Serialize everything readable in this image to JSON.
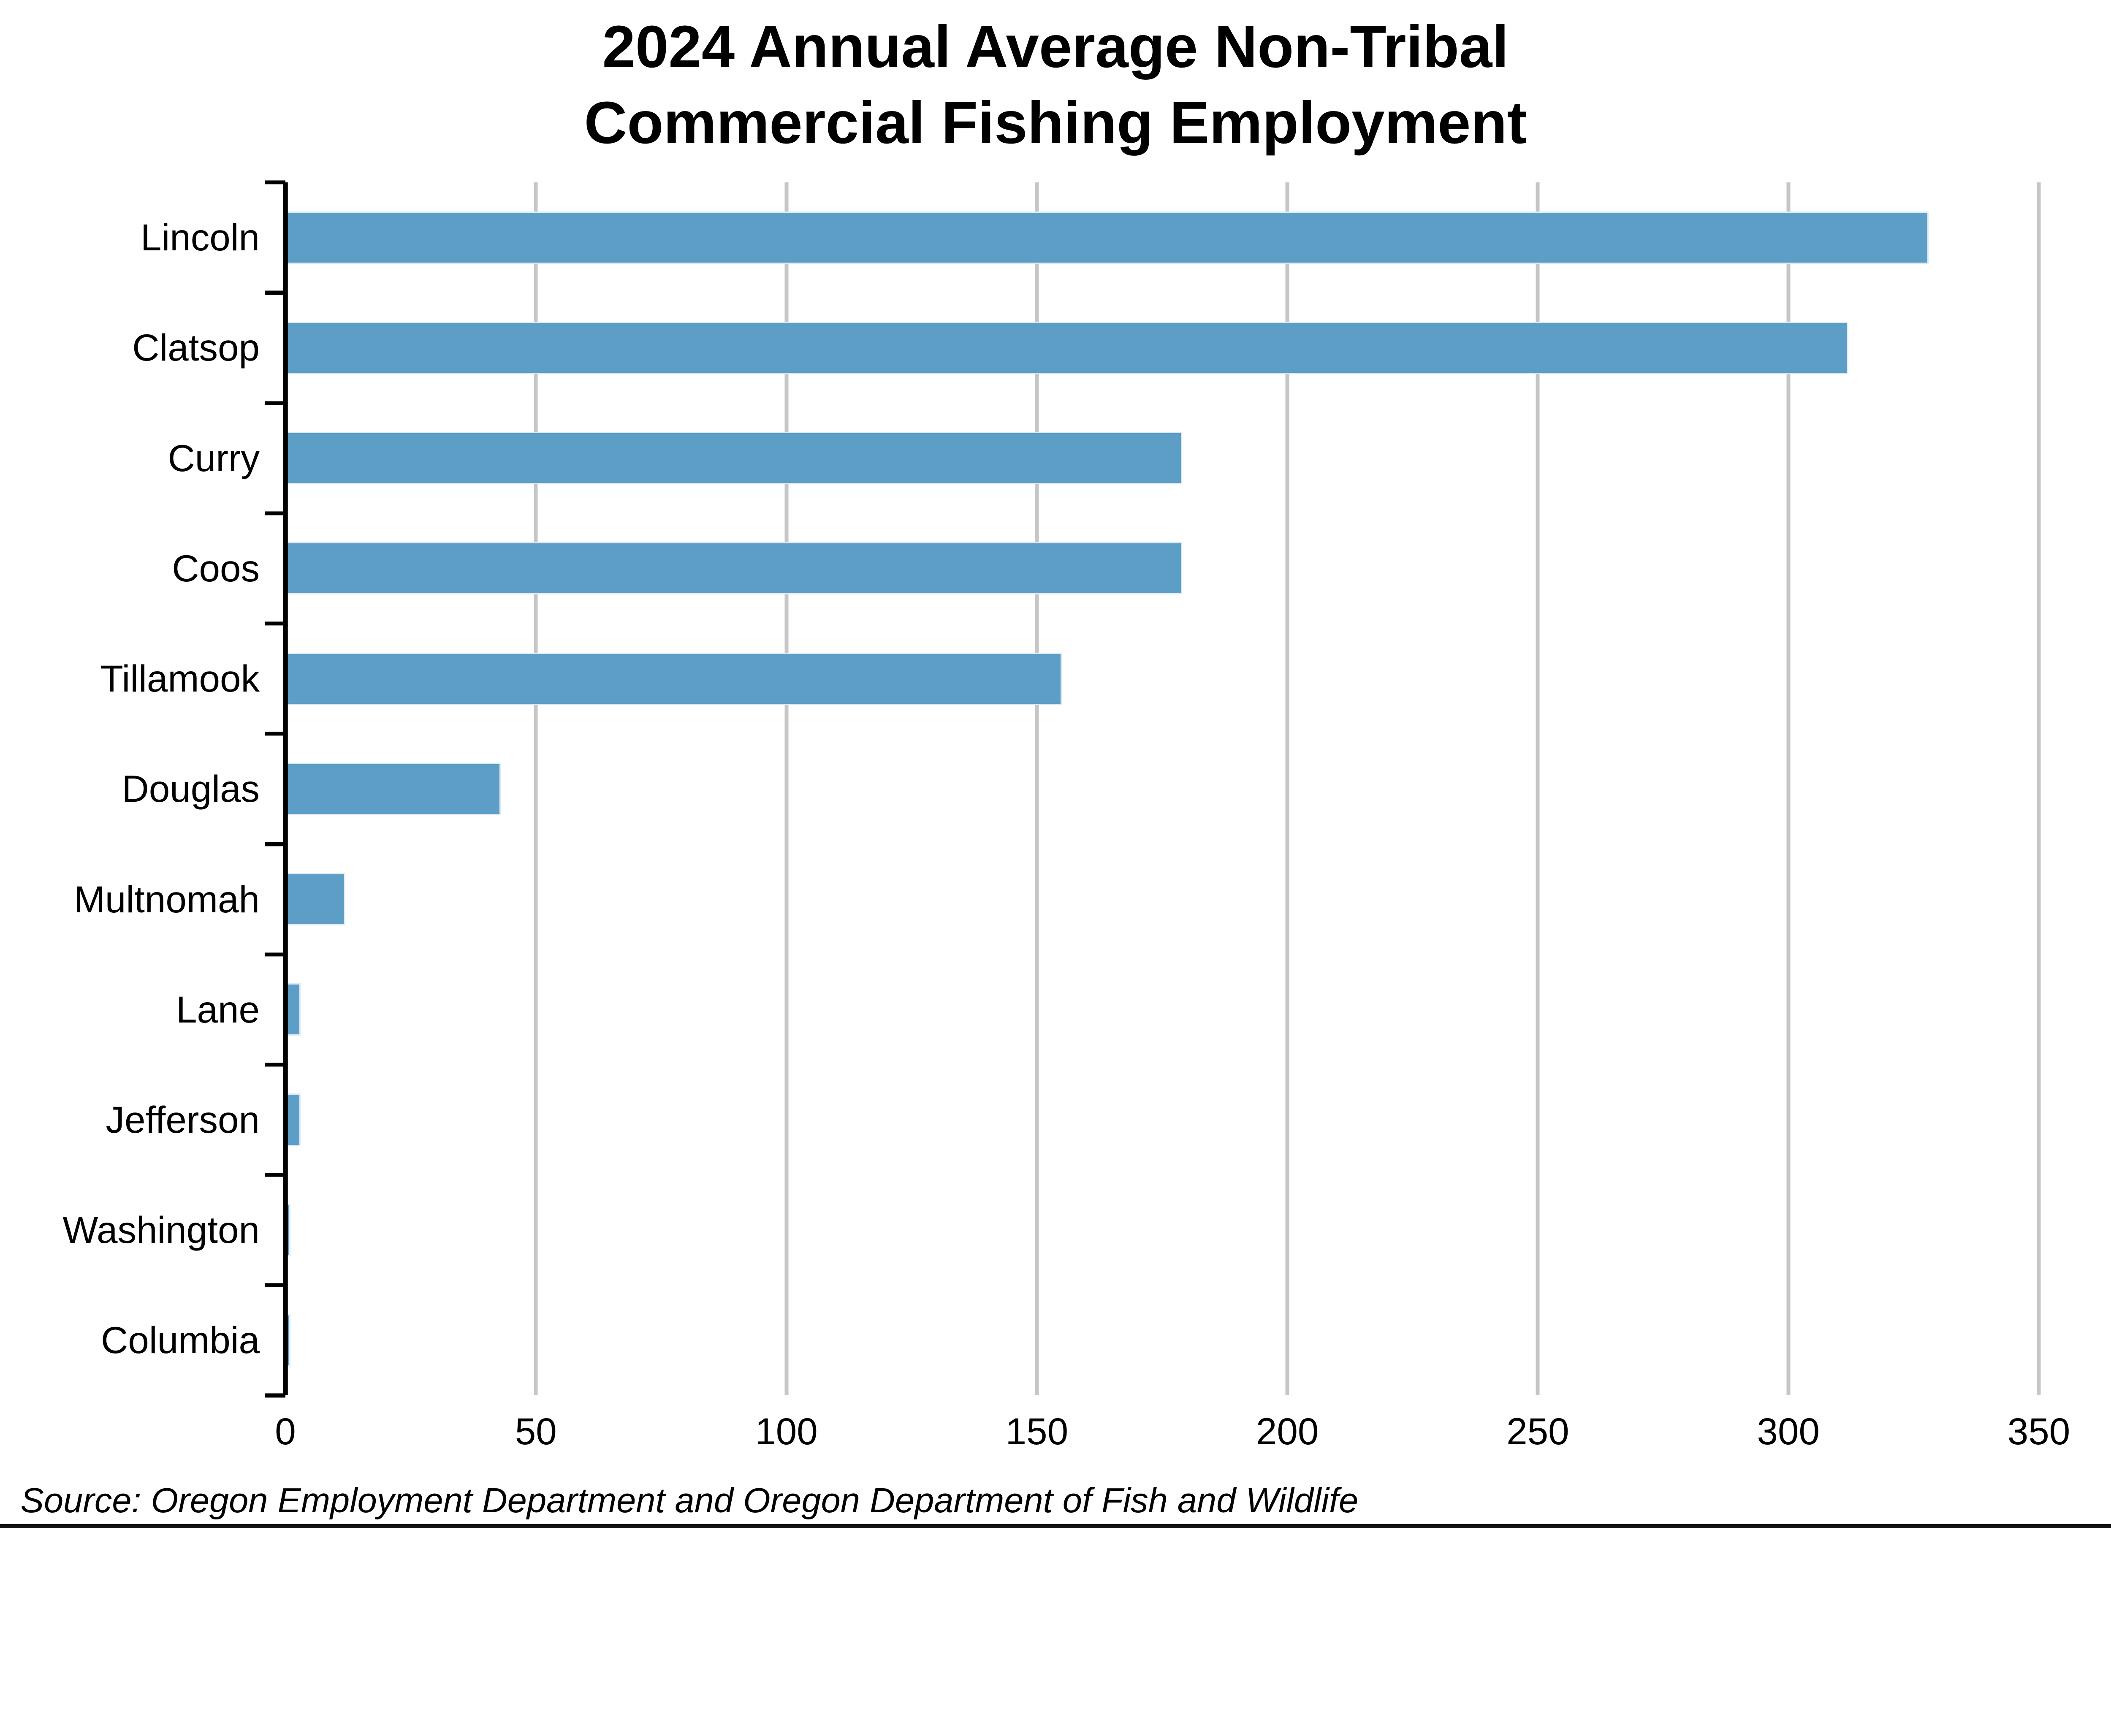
{
  "title": {
    "line1": "2024 Annual Average Non-Tribal",
    "line2": "Commercial Fishing Employment"
  },
  "source": "Source: Oregon Employment Department and Oregon Department of Fish and Wildlife",
  "chart_data": {
    "type": "bar",
    "orientation": "horizontal",
    "title": "2024 Annual Average Non-Tribal Commercial Fishing Employment",
    "categories": [
      "Lincoln",
      "Clatsop",
      "Curry",
      "Coos",
      "Tillamook",
      "Douglas",
      "Multnomah",
      "Lane",
      "Jefferson",
      "Washington",
      "Columbia"
    ],
    "values": [
      328,
      312,
      179,
      179,
      155,
      43,
      12,
      3,
      3,
      1,
      1
    ],
    "xlabel": "",
    "ylabel": "",
    "xlim": [
      0,
      350
    ],
    "xticks": [
      0,
      50,
      100,
      150,
      200,
      250,
      300,
      350
    ],
    "grid": "vertical-gridlines-on",
    "legend": "none",
    "bar_color": "#5C9EC6",
    "bar_edge_color": "#DCEAF5",
    "gridline_color": "#C6C6C6",
    "axis_color": "#000000"
  }
}
